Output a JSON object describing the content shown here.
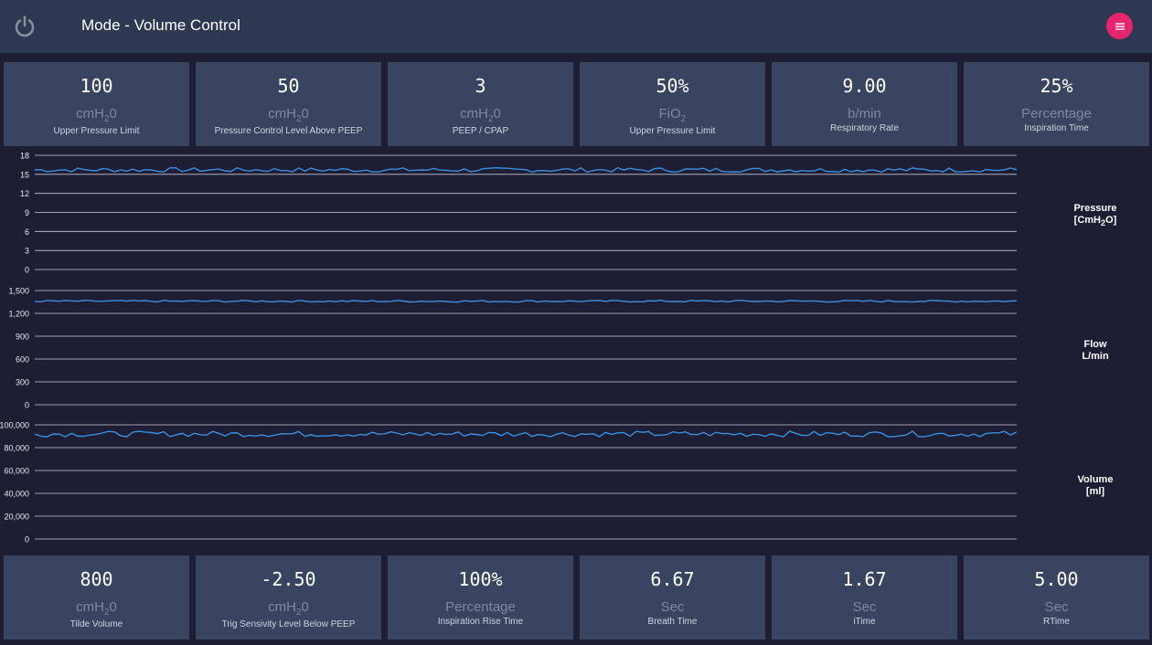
{
  "header": {
    "title": "Mode - Volume Control",
    "power_icon": "power-icon",
    "menu_icon": "menu-icon",
    "menu_color": "#e5266f"
  },
  "top_cards": [
    {
      "value": "100",
      "unit": "cmH",
      "unit_sub": "2",
      "unit_tail": "0",
      "label": "Upper Pressure Limit"
    },
    {
      "value": "50",
      "unit": "cmH",
      "unit_sub": "2",
      "unit_tail": "0",
      "label": "Pressure Control Level Above PEEP"
    },
    {
      "value": "3",
      "unit": "cmH",
      "unit_sub": "2",
      "unit_tail": "0",
      "label": "PEEP / CPAP"
    },
    {
      "value": "50%",
      "unit": "FiO",
      "unit_sub": "2",
      "unit_tail": "",
      "label": "Upper Pressure Limit"
    },
    {
      "value": "9.00",
      "unit": "b/min",
      "unit_sub": "",
      "unit_tail": "",
      "label": "Respiratory Rate"
    },
    {
      "value": "25%",
      "unit": "Percentage",
      "unit_sub": "",
      "unit_tail": "",
      "label": "Inspiration Time"
    }
  ],
  "bottom_cards": [
    {
      "value": "800",
      "unit": "cmH",
      "unit_sub": "2",
      "unit_tail": "0",
      "label": "Tilde Volume"
    },
    {
      "value": "-2.50",
      "unit": "cmH",
      "unit_sub": "2",
      "unit_tail": "0",
      "label": "Trig Sensivity Level Below PEEP"
    },
    {
      "value": "100%",
      "unit": "Percentage",
      "unit_sub": "",
      "unit_tail": "",
      "label": "Inspiration Rise Time"
    },
    {
      "value": "6.67",
      "unit": "Sec",
      "unit_sub": "",
      "unit_tail": "",
      "label": "Breath Time"
    },
    {
      "value": "1.67",
      "unit": "Sec",
      "unit_sub": "",
      "unit_tail": "",
      "label": "iTime"
    },
    {
      "value": "5.00",
      "unit": "Sec",
      "unit_sub": "",
      "unit_tail": "",
      "label": "RTime"
    }
  ],
  "chart_data": [
    {
      "type": "line",
      "name": "pressure",
      "label_line1": "Pressure",
      "label_line2": "[CmH",
      "label_sub": "2",
      "label_tail": "O]",
      "ylim": [
        0,
        18
      ],
      "yticks": [
        "18",
        "15",
        "12",
        "9",
        "6",
        "3",
        "0"
      ],
      "line_color": "#3b8fe0",
      "baseline": 15.7,
      "noise": 0.35,
      "grid": true
    },
    {
      "type": "line",
      "name": "flow",
      "label_line1": "Flow",
      "label_line2": "L/min",
      "label_sub": "",
      "label_tail": "",
      "ylim": [
        0,
        1500
      ],
      "yticks": [
        "1,500",
        "1,200",
        "900",
        "600",
        "300",
        "0"
      ],
      "line_color": "#3b8fe0",
      "baseline": 1360,
      "noise": 12,
      "grid": true
    },
    {
      "type": "line",
      "name": "volume",
      "label_line1": "Volume",
      "label_line2": "[ml]",
      "label_sub": "",
      "label_tail": "",
      "ylim": [
        0,
        100000
      ],
      "yticks": [
        "100,000",
        "80,000",
        "60,000",
        "40,000",
        "20,000",
        "0"
      ],
      "line_color": "#3b8fe0",
      "baseline": 92000,
      "noise": 2400,
      "grid": true
    }
  ]
}
